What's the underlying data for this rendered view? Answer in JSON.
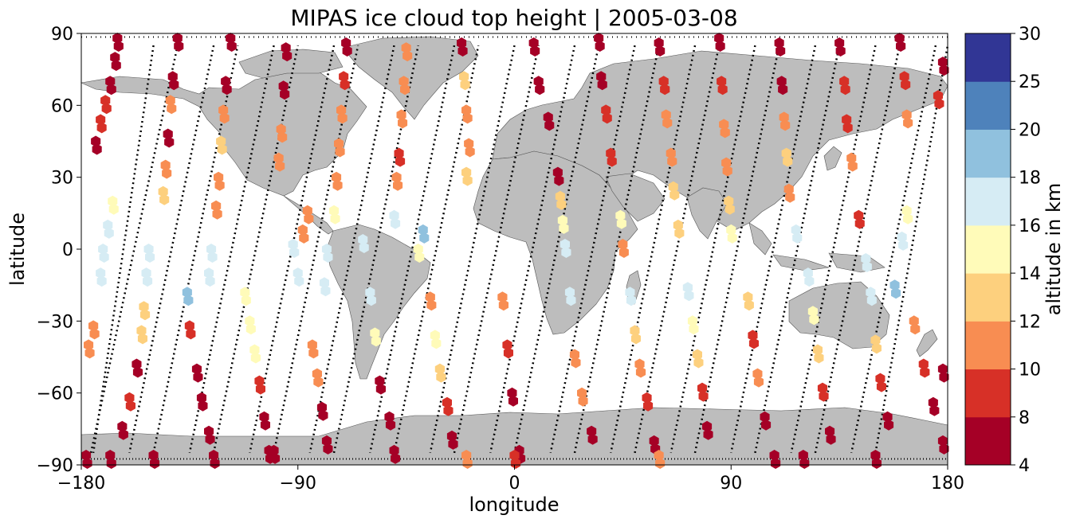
{
  "chart_data": {
    "type": "scatter",
    "title": "MIPAS ice cloud top height | 2005-03-08",
    "xlabel": "longitude",
    "ylabel": "latitude",
    "xlim": [
      -180,
      180
    ],
    "ylim": [
      -90,
      90
    ],
    "xticks": [
      -180,
      -90,
      0,
      90,
      180
    ],
    "yticks": [
      -90,
      -60,
      -30,
      0,
      30,
      60,
      90
    ],
    "xtick_labels": [
      "−180",
      "−90",
      "0",
      "90",
      "180"
    ],
    "ytick_labels": [
      "−90",
      "−60",
      "−30",
      "0",
      "30",
      "60",
      "90"
    ],
    "colorbar": {
      "label": "altitude in km",
      "boundaries": [
        4,
        8,
        10,
        12,
        14,
        16,
        18,
        20,
        25,
        30
      ],
      "tick_labels": [
        "4",
        "8",
        "10",
        "12",
        "14",
        "16",
        "18",
        "20",
        "25",
        "30"
      ],
      "colors": [
        "#a50026",
        "#d73027",
        "#f46d43",
        "#fdae61",
        "#fee090",
        "#ffffbf",
        "#e0f3f8",
        "#abd9e9",
        "#74add1",
        "#313695"
      ],
      "band_colors": [
        "#a50026",
        "#d73027",
        "#f88d52",
        "#fdd07e",
        "#fffbb9",
        "#d6ecf4",
        "#90c1de",
        "#4e82bb",
        "#313695"
      ]
    },
    "map": {
      "land_color": "#bdbdbd",
      "ocean_color": "#ffffff",
      "track_color": "#000000"
    },
    "orbit_tracks": [
      {
        "lat_start": -85,
        "lon_start": -176,
        "lon_end": -140,
        "direction": "up"
      },
      {
        "lat_start": -85,
        "lon_start": -150,
        "lon_end": -115,
        "direction": "up"
      },
      {
        "lat_start": -85,
        "lon_start": -125,
        "lon_end": -90,
        "direction": "up"
      },
      {
        "lat_start": -85,
        "lon_start": -100,
        "lon_end": -65,
        "direction": "up"
      },
      {
        "lat_start": -85,
        "lon_start": -75,
        "lon_end": -40,
        "direction": "up"
      },
      {
        "lat_start": -85,
        "lon_start": -50,
        "lon_end": -15,
        "direction": "up"
      },
      {
        "lat_start": -85,
        "lon_start": -25,
        "lon_end": 10,
        "direction": "up"
      },
      {
        "lat_start": -85,
        "lon_start": 0,
        "lon_end": 35,
        "direction": "up"
      },
      {
        "lat_start": -85,
        "lon_start": 25,
        "lon_end": 60,
        "direction": "up"
      },
      {
        "lat_start": -85,
        "lon_start": 50,
        "lon_end": 85,
        "direction": "up"
      },
      {
        "lat_start": -85,
        "lon_start": 75,
        "lon_end": 110,
        "direction": "up"
      },
      {
        "lat_start": -85,
        "lon_start": 100,
        "lon_end": 135,
        "direction": "up"
      },
      {
        "lat_start": -85,
        "lon_start": 125,
        "lon_end": 160,
        "direction": "up"
      },
      {
        "lat_start": -85,
        "lon_start": 150,
        "lon_end": 180,
        "direction": "up"
      },
      {
        "lat_start": 85,
        "lon_start": -150,
        "lon_end": -175,
        "direction": "down"
      },
      {
        "lat_start": 85,
        "lon_start": -125,
        "lon_end": -160,
        "direction": "down"
      },
      {
        "lat_start": 85,
        "lon_start": -100,
        "lon_end": -135,
        "direction": "down"
      },
      {
        "lat_start": 85,
        "lon_start": -75,
        "lon_end": -110,
        "direction": "down"
      },
      {
        "lat_start": 85,
        "lon_start": -50,
        "lon_end": -85,
        "direction": "down"
      },
      {
        "lat_start": 85,
        "lon_start": -25,
        "lon_end": -60,
        "direction": "down"
      },
      {
        "lat_start": 85,
        "lon_start": 0,
        "lon_end": -35,
        "direction": "down"
      },
      {
        "lat_start": 85,
        "lon_start": 25,
        "lon_end": -10,
        "direction": "down"
      },
      {
        "lat_start": 85,
        "lon_start": 50,
        "lon_end": 15,
        "direction": "down"
      },
      {
        "lat_start": 85,
        "lon_start": 75,
        "lon_end": 40,
        "direction": "down"
      },
      {
        "lat_start": 85,
        "lon_start": 100,
        "lon_end": 65,
        "direction": "down"
      },
      {
        "lat_start": 85,
        "lon_start": 125,
        "lon_end": 90,
        "direction": "down"
      },
      {
        "lat_start": 85,
        "lon_start": 150,
        "lon_end": 115,
        "direction": "down"
      },
      {
        "lat_start": 85,
        "lon_start": 175,
        "lon_end": 140,
        "direction": "down"
      }
    ],
    "points": [
      {
        "lon": -165,
        "lat": 88,
        "alt": 6
      },
      {
        "lon": -166,
        "lat": 80,
        "alt": 6
      },
      {
        "lon": -168,
        "lat": 70,
        "alt": 6
      },
      {
        "lon": -170,
        "lat": 62,
        "alt": 9
      },
      {
        "lon": -172,
        "lat": 54,
        "alt": 9
      },
      {
        "lon": -174,
        "lat": 45,
        "alt": 6
      },
      {
        "lon": -167,
        "lat": 20,
        "alt": 15
      },
      {
        "lon": -169,
        "lat": 10,
        "alt": 17
      },
      {
        "lon": -171,
        "lat": 0,
        "alt": 17
      },
      {
        "lon": -172,
        "lat": -10,
        "alt": 17
      },
      {
        "lon": -175,
        "lat": -32,
        "alt": 11
      },
      {
        "lon": -177,
        "lat": -40,
        "alt": 11
      },
      {
        "lon": -140,
        "lat": 88,
        "alt": 6
      },
      {
        "lon": -142,
        "lat": 72,
        "alt": 6
      },
      {
        "lon": -143,
        "lat": 62,
        "alt": 11
      },
      {
        "lon": -144,
        "lat": 48,
        "alt": 6
      },
      {
        "lon": -145,
        "lat": 35,
        "alt": 11
      },
      {
        "lon": -146,
        "lat": 24,
        "alt": 13
      },
      {
        "lon": -152,
        "lat": 0,
        "alt": 17
      },
      {
        "lon": -153,
        "lat": -10,
        "alt": 17
      },
      {
        "lon": -154,
        "lat": -24,
        "alt": 13
      },
      {
        "lon": -155,
        "lat": -34,
        "alt": 13
      },
      {
        "lon": -157,
        "lat": -48,
        "alt": 6
      },
      {
        "lon": -160,
        "lat": -62,
        "alt": 9
      },
      {
        "lon": -163,
        "lat": -74,
        "alt": 6
      },
      {
        "lon": -168,
        "lat": -86,
        "alt": 6
      },
      {
        "lon": -118,
        "lat": 88,
        "alt": 6
      },
      {
        "lon": -120,
        "lat": 70,
        "alt": 6
      },
      {
        "lon": -121,
        "lat": 58,
        "alt": 11
      },
      {
        "lon": -122,
        "lat": 45,
        "alt": 13
      },
      {
        "lon": -123,
        "lat": 30,
        "alt": 11
      },
      {
        "lon": -124,
        "lat": 18,
        "alt": 11
      },
      {
        "lon": -126,
        "lat": 0,
        "alt": 17
      },
      {
        "lon": -127,
        "lat": -10,
        "alt": 17
      },
      {
        "lon": -136,
        "lat": -18,
        "alt": 19
      },
      {
        "lon": -135,
        "lat": -32,
        "alt": 9
      },
      {
        "lon": -132,
        "lat": -50,
        "alt": 6
      },
      {
        "lon": -130,
        "lat": -62,
        "alt": 6
      },
      {
        "lon": -127,
        "lat": -76,
        "alt": 6
      },
      {
        "lon": -125,
        "lat": -86,
        "alt": 6
      },
      {
        "lon": -95,
        "lat": 84,
        "alt": 6
      },
      {
        "lon": -96,
        "lat": 68,
        "alt": 6
      },
      {
        "lon": -97,
        "lat": 50,
        "alt": 11
      },
      {
        "lon": -98,
        "lat": 38,
        "alt": 11
      },
      {
        "lon": -112,
        "lat": -18,
        "alt": 15
      },
      {
        "lon": -110,
        "lat": -30,
        "alt": 15
      },
      {
        "lon": -108,
        "lat": -42,
        "alt": 15
      },
      {
        "lon": -106,
        "lat": -55,
        "alt": 9
      },
      {
        "lon": -104,
        "lat": -70,
        "alt": 6
      },
      {
        "lon": -102,
        "lat": -84,
        "alt": 6
      },
      {
        "lon": -92,
        "lat": 2,
        "alt": 17
      },
      {
        "lon": -90,
        "lat": -10,
        "alt": 17
      },
      {
        "lon": -86,
        "lat": 16,
        "alt": 11
      },
      {
        "lon": -88,
        "lat": 8,
        "alt": 11
      },
      {
        "lon": -70,
        "lat": 86,
        "alt": 6
      },
      {
        "lon": -71,
        "lat": 72,
        "alt": 9
      },
      {
        "lon": -72,
        "lat": 58,
        "alt": 11
      },
      {
        "lon": -73,
        "lat": 44,
        "alt": 11
      },
      {
        "lon": -74,
        "lat": 30,
        "alt": 11
      },
      {
        "lon": -75,
        "lat": 16,
        "alt": 15
      },
      {
        "lon": -78,
        "lat": 0,
        "alt": 17
      },
      {
        "lon": -79,
        "lat": -14,
        "alt": 17
      },
      {
        "lon": -84,
        "lat": -40,
        "alt": 11
      },
      {
        "lon": -82,
        "lat": -52,
        "alt": 11
      },
      {
        "lon": -80,
        "lat": -66,
        "alt": 6
      },
      {
        "lon": -78,
        "lat": -80,
        "alt": 6
      },
      {
        "lon": -63,
        "lat": 4,
        "alt": 17
      },
      {
        "lon": -60,
        "lat": -18,
        "alt": 17
      },
      {
        "lon": -58,
        "lat": -35,
        "alt": 15
      },
      {
        "lon": -56,
        "lat": -55,
        "alt": 6
      },
      {
        "lon": -52,
        "lat": -70,
        "alt": 6
      },
      {
        "lon": -50,
        "lat": -84,
        "alt": 6
      },
      {
        "lon": -45,
        "lat": 84,
        "alt": 11
      },
      {
        "lon": -46,
        "lat": 70,
        "alt": 11
      },
      {
        "lon": -47,
        "lat": 56,
        "alt": 11
      },
      {
        "lon": -48,
        "lat": 40,
        "alt": 9
      },
      {
        "lon": -49,
        "lat": 30,
        "alt": 11
      },
      {
        "lon": -50,
        "lat": 14,
        "alt": 17
      },
      {
        "lon": -38,
        "lat": 8,
        "alt": 19
      },
      {
        "lon": -40,
        "lat": 0,
        "alt": 15
      },
      {
        "lon": -35,
        "lat": -20,
        "alt": 11
      },
      {
        "lon": -33,
        "lat": -36,
        "alt": 15
      },
      {
        "lon": -31,
        "lat": -50,
        "alt": 13
      },
      {
        "lon": -28,
        "lat": -64,
        "alt": 9
      },
      {
        "lon": -26,
        "lat": -78,
        "alt": 6
      },
      {
        "lon": -22,
        "lat": 86,
        "alt": 6
      },
      {
        "lon": -21,
        "lat": 72,
        "alt": 13
      },
      {
        "lon": -20,
        "lat": 58,
        "alt": 11
      },
      {
        "lon": -19,
        "lat": 44,
        "alt": 11
      },
      {
        "lon": -20,
        "lat": 32,
        "alt": 13
      },
      {
        "lon": -5,
        "lat": -20,
        "alt": 11
      },
      {
        "lon": -3,
        "lat": -40,
        "alt": 9
      },
      {
        "lon": -1,
        "lat": -60,
        "alt": 6
      },
      {
        "lon": 2,
        "lat": -84,
        "alt": 6
      },
      {
        "lon": 8,
        "lat": 86,
        "alt": 6
      },
      {
        "lon": 10,
        "lat": 70,
        "alt": 6
      },
      {
        "lon": 14,
        "lat": 55,
        "alt": 6
      },
      {
        "lon": 18,
        "lat": 32,
        "alt": 6
      },
      {
        "lon": 19,
        "lat": 22,
        "alt": 13
      },
      {
        "lon": 20,
        "lat": 12,
        "alt": 15
      },
      {
        "lon": 21,
        "lat": 2,
        "alt": 17
      },
      {
        "lon": 23,
        "lat": -18,
        "alt": 17
      },
      {
        "lon": 25,
        "lat": -44,
        "alt": 11
      },
      {
        "lon": 28,
        "lat": -60,
        "alt": 11
      },
      {
        "lon": 32,
        "lat": -76,
        "alt": 6
      },
      {
        "lon": 35,
        "lat": 88,
        "alt": 6
      },
      {
        "lon": 36,
        "lat": 72,
        "alt": 6
      },
      {
        "lon": 38,
        "lat": 58,
        "alt": 9
      },
      {
        "lon": 40,
        "lat": 40,
        "alt": 9
      },
      {
        "lon": 44,
        "lat": 14,
        "alt": 15
      },
      {
        "lon": 45,
        "lat": 2,
        "alt": 11
      },
      {
        "lon": 48,
        "lat": -18,
        "alt": 17
      },
      {
        "lon": 50,
        "lat": -34,
        "alt": 13
      },
      {
        "lon": 52,
        "lat": -48,
        "alt": 11
      },
      {
        "lon": 55,
        "lat": -62,
        "alt": 9
      },
      {
        "lon": 58,
        "lat": -80,
        "alt": 6
      },
      {
        "lon": 60,
        "lat": 86,
        "alt": 6
      },
      {
        "lon": 62,
        "lat": 70,
        "alt": 9
      },
      {
        "lon": 63,
        "lat": 56,
        "alt": 11
      },
      {
        "lon": 65,
        "lat": 40,
        "alt": 11
      },
      {
        "lon": 66,
        "lat": 26,
        "alt": 13
      },
      {
        "lon": 68,
        "lat": 10,
        "alt": 13
      },
      {
        "lon": 72,
        "lat": -16,
        "alt": 17
      },
      {
        "lon": 74,
        "lat": -30,
        "alt": 15
      },
      {
        "lon": 76,
        "lat": -44,
        "alt": 13
      },
      {
        "lon": 78,
        "lat": -58,
        "alt": 9
      },
      {
        "lon": 80,
        "lat": -74,
        "alt": 6
      },
      {
        "lon": 85,
        "lat": 88,
        "alt": 6
      },
      {
        "lon": 86,
        "lat": 70,
        "alt": 9
      },
      {
        "lon": 87,
        "lat": 52,
        "alt": 11
      },
      {
        "lon": 88,
        "lat": 36,
        "alt": 11
      },
      {
        "lon": 89,
        "lat": 20,
        "alt": 13
      },
      {
        "lon": 90,
        "lat": 8,
        "alt": 15
      },
      {
        "lon": 97,
        "lat": -20,
        "alt": 13
      },
      {
        "lon": 99,
        "lat": -36,
        "alt": 9
      },
      {
        "lon": 101,
        "lat": -52,
        "alt": 11
      },
      {
        "lon": 104,
        "lat": -70,
        "alt": 6
      },
      {
        "lon": 108,
        "lat": -86,
        "alt": 6
      },
      {
        "lon": 110,
        "lat": 86,
        "alt": 6
      },
      {
        "lon": 111,
        "lat": 70,
        "alt": 6
      },
      {
        "lon": 112,
        "lat": 55,
        "alt": 11
      },
      {
        "lon": 113,
        "lat": 40,
        "alt": 13
      },
      {
        "lon": 114,
        "lat": 25,
        "alt": 11
      },
      {
        "lon": 117,
        "lat": 8,
        "alt": 17
      },
      {
        "lon": 122,
        "lat": -10,
        "alt": 17
      },
      {
        "lon": 124,
        "lat": -26,
        "alt": 15
      },
      {
        "lon": 126,
        "lat": -42,
        "alt": 13
      },
      {
        "lon": 128,
        "lat": -58,
        "alt": 9
      },
      {
        "lon": 131,
        "lat": -76,
        "alt": 6
      },
      {
        "lon": 135,
        "lat": 86,
        "alt": 6
      },
      {
        "lon": 137,
        "lat": 70,
        "alt": 9
      },
      {
        "lon": 138,
        "lat": 54,
        "alt": 9
      },
      {
        "lon": 140,
        "lat": 38,
        "alt": 11
      },
      {
        "lon": 143,
        "lat": 14,
        "alt": 9
      },
      {
        "lon": 146,
        "lat": -4,
        "alt": 17
      },
      {
        "lon": 148,
        "lat": -18,
        "alt": 17
      },
      {
        "lon": 150,
        "lat": -38,
        "alt": 13
      },
      {
        "lon": 152,
        "lat": -54,
        "alt": 9
      },
      {
        "lon": 155,
        "lat": -70,
        "alt": 6
      },
      {
        "lon": 160,
        "lat": 88,
        "alt": 6
      },
      {
        "lon": 162,
        "lat": 72,
        "alt": 9
      },
      {
        "lon": 163,
        "lat": 56,
        "alt": 11
      },
      {
        "lon": 158,
        "lat": -15,
        "alt": 19
      },
      {
        "lon": 161,
        "lat": 5,
        "alt": 17
      },
      {
        "lon": 163,
        "lat": 16,
        "alt": 15
      },
      {
        "lon": 166,
        "lat": -30,
        "alt": 11
      },
      {
        "lon": 170,
        "lat": -48,
        "alt": 9
      },
      {
        "lon": 174,
        "lat": -64,
        "alt": 6
      },
      {
        "lon": 178,
        "lat": -80,
        "alt": 6
      },
      {
        "lon": 178,
        "lat": -50,
        "alt": 6
      },
      {
        "lon": 176,
        "lat": 64,
        "alt": 9
      },
      {
        "lon": 178,
        "lat": 78,
        "alt": 6
      },
      {
        "lon": -178,
        "lat": -86,
        "alt": 6
      },
      {
        "lon": -150,
        "lat": -86,
        "alt": 6
      },
      {
        "lon": -100,
        "lat": -84,
        "alt": 6
      },
      {
        "lon": -20,
        "lat": -86,
        "alt": 11
      },
      {
        "lon": 0,
        "lat": -86,
        "alt": 9
      },
      {
        "lon": 60,
        "lat": -86,
        "alt": 11
      },
      {
        "lon": 120,
        "lat": -86,
        "alt": 6
      },
      {
        "lon": 150,
        "lat": -86,
        "alt": 6
      }
    ]
  }
}
